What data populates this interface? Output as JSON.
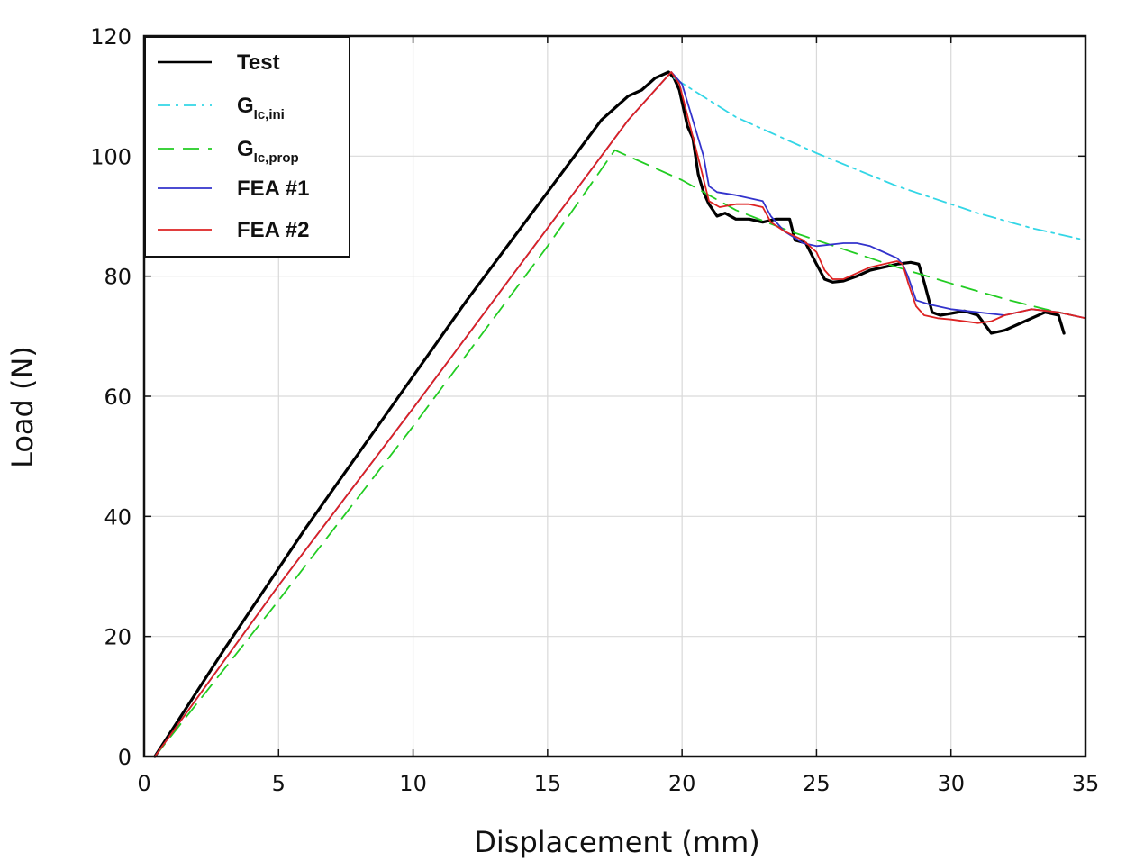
{
  "chart_data": {
    "type": "line",
    "title": "",
    "xlabel": "Displacement (mm)",
    "ylabel": "Load (N)",
    "xlim": [
      0,
      35
    ],
    "ylim": [
      0,
      120
    ],
    "xticks": [
      0,
      5,
      10,
      15,
      20,
      25,
      30,
      35
    ],
    "yticks": [
      0,
      20,
      40,
      60,
      80,
      100,
      120
    ],
    "grid": true,
    "legend_position": "top-left",
    "series": [
      {
        "name": "Test",
        "legend_main": "Test",
        "legend_sub": "",
        "color": "#000000",
        "style": "solid",
        "x": [
          0.4,
          3,
          6,
          9,
          12,
          15,
          16,
          16.5,
          17,
          17.5,
          18,
          18.5,
          19,
          19.5,
          19.7,
          19.9,
          20.2,
          20.4,
          20.6,
          20.8,
          21,
          21.3,
          21.6,
          22,
          22.5,
          23,
          23.5,
          24,
          24.2,
          24.6,
          25,
          25.3,
          25.6,
          26,
          26.5,
          27,
          27.5,
          28,
          28.5,
          28.8,
          29,
          29.3,
          29.6,
          30,
          30.5,
          31,
          31.5,
          32,
          32.5,
          33,
          33.5,
          34,
          34.2
        ],
        "y": [
          0,
          18,
          38,
          57,
          76,
          94,
          100,
          103,
          106,
          108,
          110,
          111,
          113,
          114,
          113,
          111,
          105,
          103,
          97,
          94,
          92,
          90,
          90.5,
          89.5,
          89.5,
          89,
          89.5,
          89.5,
          86,
          85.5,
          82,
          79.5,
          79,
          79.2,
          80,
          81,
          81.5,
          82,
          82.3,
          82,
          79,
          74,
          73.5,
          73.8,
          74.2,
          73.5,
          70.5,
          71,
          72,
          73,
          74,
          73.5,
          70.5
        ]
      },
      {
        "name": "GIc,ini",
        "legend_main": "G",
        "legend_sub": "Ic,ini",
        "color": "#33d6e6",
        "style": "dashdot",
        "x": [
          19.7,
          22,
          25,
          28,
          31,
          33,
          35
        ],
        "y": [
          113,
          106.5,
          100.5,
          95,
          90.5,
          88,
          86
        ]
      },
      {
        "name": "GIc,prop",
        "legend_main": "G",
        "legend_sub": "Ic,prop",
        "color": "#22cc22",
        "style": "dashed",
        "x": [
          0.4,
          5,
          10,
          15,
          17.5,
          20,
          22,
          24,
          26,
          28,
          30,
          32,
          33.5,
          35
        ],
        "y": [
          0,
          26,
          55,
          85,
          101,
          96,
          91,
          87.5,
          84.5,
          81.5,
          78.8,
          76.2,
          74.5,
          73
        ]
      },
      {
        "name": "FEA #1",
        "legend_main": "FEA #1",
        "legend_sub": "",
        "color": "#3333cc",
        "style": "solid",
        "x": [
          0.4,
          5,
          10,
          15,
          18,
          19.6,
          20,
          20.4,
          20.8,
          21,
          21.3,
          22,
          22.5,
          23,
          23.3,
          23.8,
          24.5,
          25,
          26,
          26.5,
          27,
          27.5,
          28,
          28.2,
          28.4,
          28.7,
          29.2,
          30,
          31,
          32,
          33,
          34,
          35
        ],
        "y": [
          0,
          28.5,
          58,
          88,
          106,
          114,
          112,
          106,
          100,
          95,
          94,
          93.5,
          93,
          92.5,
          90,
          87.5,
          85.5,
          85,
          85.5,
          85.5,
          85,
          84,
          83,
          82,
          80,
          76,
          75.3,
          74.5,
          74,
          73.5,
          74.5,
          74,
          73
        ]
      },
      {
        "name": "FEA #2",
        "legend_main": "FEA #2",
        "legend_sub": "",
        "color": "#dd2222",
        "style": "solid",
        "x": [
          0.4,
          5,
          10,
          15,
          18,
          19.6,
          19.9,
          20.3,
          20.7,
          21,
          21.4,
          22,
          22.5,
          23,
          23.3,
          23.8,
          24.5,
          25,
          25.3,
          25.6,
          26,
          26.5,
          27,
          27.5,
          28,
          28.2,
          28.4,
          28.7,
          29,
          29.5,
          30,
          31,
          31.5,
          32,
          33,
          34,
          35
        ],
        "y": [
          0,
          28.5,
          58,
          88,
          106,
          114,
          112,
          105,
          98,
          92.5,
          91.5,
          92,
          92,
          91.5,
          89,
          87.5,
          86,
          84,
          81,
          79.5,
          79.5,
          80.5,
          81.5,
          82,
          82.5,
          82,
          79,
          75,
          73.5,
          73,
          72.8,
          72.2,
          72.5,
          73.5,
          74.5,
          74,
          73
        ]
      }
    ]
  }
}
